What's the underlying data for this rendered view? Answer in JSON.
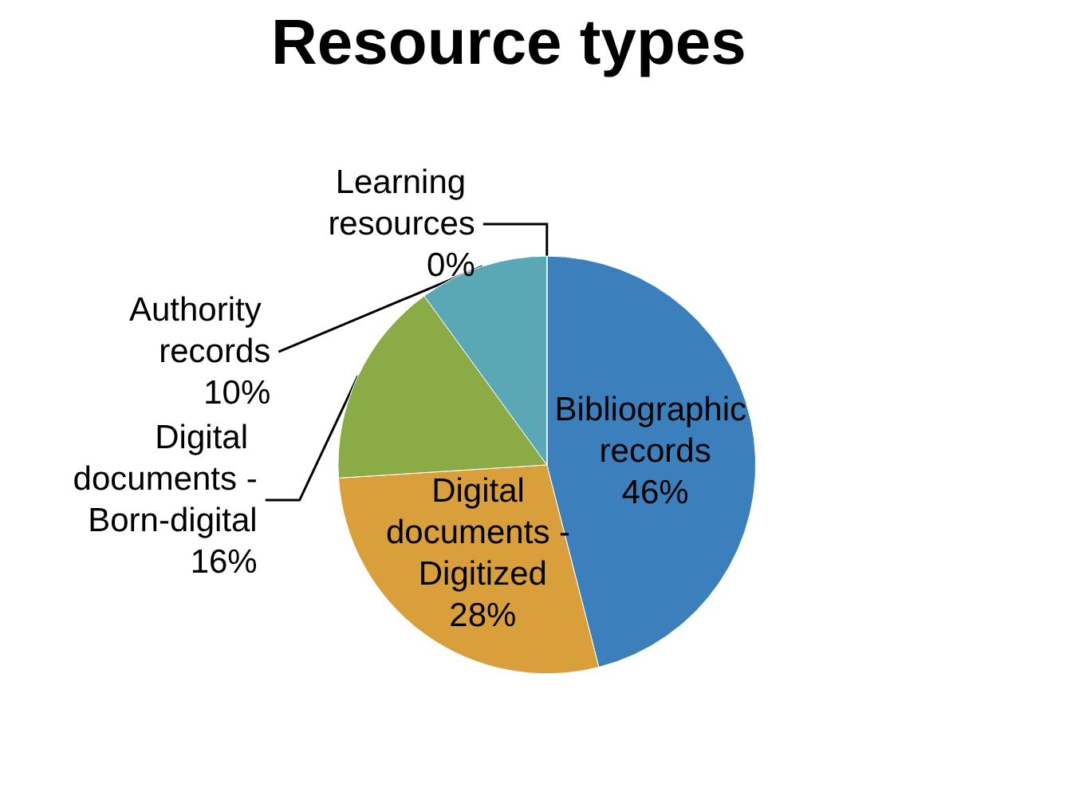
{
  "chart_data": {
    "type": "pie",
    "title": "Resource types",
    "categories": [
      "Bibliographic records",
      "Digital documents - Digitized",
      "Digital documents - Born-digital",
      "Authority records",
      "Learning resources"
    ],
    "values": [
      46,
      28,
      16,
      10,
      0
    ],
    "value_labels": [
      "46%",
      "28%",
      "16%",
      "10%",
      "0%"
    ],
    "colors": [
      "#3b80bd",
      "#d99f3b",
      "#8aab46",
      "#5aa8b5",
      "#8064a2"
    ],
    "legend": false
  }
}
